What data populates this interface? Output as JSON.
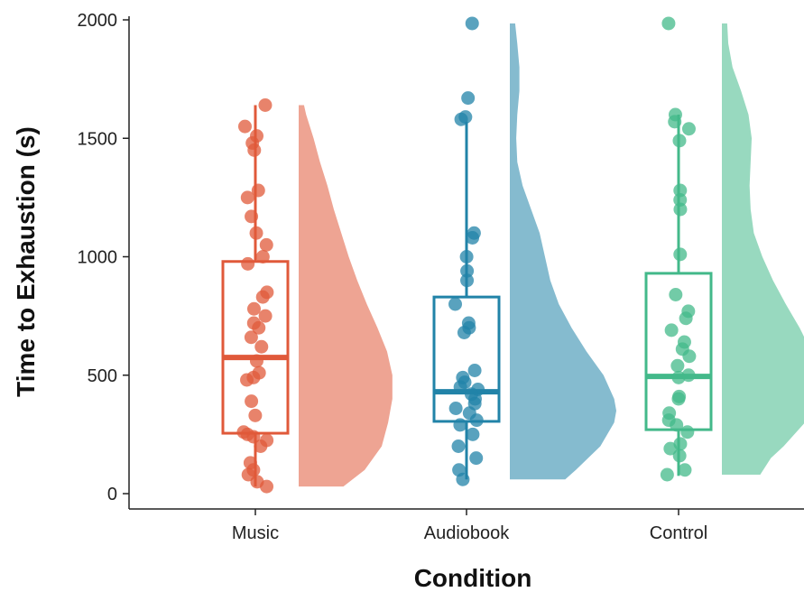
{
  "chart_data": {
    "type": "raincloud",
    "title": "",
    "xlabel": "Condition",
    "ylabel": "Time to Exhaustion (s)",
    "ylim": [
      0,
      2000
    ],
    "yticks": [
      0,
      500,
      1000,
      1500,
      2000
    ],
    "categories": [
      "Music",
      "Audiobook",
      "Control"
    ],
    "grid": false,
    "legend": "none",
    "colors": {
      "Music": "#E0593A",
      "Audiobook": "#2183A8",
      "Control": "#43B98A"
    },
    "series": [
      {
        "group": "Music",
        "box": {
          "q1": 255,
          "median": 575,
          "q3": 980,
          "whisker_low": 30,
          "whisker_high": 1640
        },
        "points": [
          1640,
          1550,
          1510,
          1480,
          1450,
          1280,
          1250,
          1170,
          1100,
          1050,
          1000,
          970,
          850,
          830,
          780,
          750,
          720,
          700,
          660,
          620,
          560,
          510,
          490,
          480,
          390,
          330,
          260,
          250,
          240,
          225,
          200,
          130,
          100,
          80,
          50,
          30
        ],
        "density": [
          [
            30,
            0.42
          ],
          [
            100,
            0.62
          ],
          [
            200,
            0.78
          ],
          [
            300,
            0.84
          ],
          [
            400,
            0.88
          ],
          [
            500,
            0.88
          ],
          [
            600,
            0.83
          ],
          [
            700,
            0.74
          ],
          [
            800,
            0.64
          ],
          [
            900,
            0.55
          ],
          [
            1000,
            0.47
          ],
          [
            1100,
            0.4
          ],
          [
            1200,
            0.33
          ],
          [
            1300,
            0.27
          ],
          [
            1400,
            0.2
          ],
          [
            1500,
            0.14
          ],
          [
            1600,
            0.07
          ],
          [
            1640,
            0.05
          ]
        ]
      },
      {
        "group": "Audiobook",
        "box": {
          "q1": 305,
          "median": 430,
          "q3": 830,
          "whisker_low": 60,
          "whisker_high": 1570
        },
        "points": [
          1985,
          1670,
          1590,
          1580,
          1100,
          1080,
          1000,
          940,
          900,
          800,
          720,
          700,
          680,
          520,
          490,
          470,
          450,
          440,
          420,
          400,
          380,
          360,
          340,
          310,
          290,
          250,
          200,
          150,
          100,
          60
        ],
        "density": [
          [
            60,
            0.52
          ],
          [
            100,
            0.62
          ],
          [
            200,
            0.85
          ],
          [
            300,
            0.98
          ],
          [
            350,
            1.0
          ],
          [
            400,
            0.98
          ],
          [
            500,
            0.88
          ],
          [
            600,
            0.72
          ],
          [
            700,
            0.58
          ],
          [
            800,
            0.46
          ],
          [
            900,
            0.38
          ],
          [
            1000,
            0.33
          ],
          [
            1100,
            0.28
          ],
          [
            1200,
            0.2
          ],
          [
            1300,
            0.12
          ],
          [
            1400,
            0.07
          ],
          [
            1500,
            0.06
          ],
          [
            1600,
            0.07
          ],
          [
            1700,
            0.09
          ],
          [
            1800,
            0.09
          ],
          [
            1900,
            0.07
          ],
          [
            1985,
            0.05
          ]
        ]
      },
      {
        "group": "Control",
        "box": {
          "q1": 270,
          "median": 495,
          "q3": 930,
          "whisker_low": 75,
          "whisker_high": 1600
        },
        "points": [
          1985,
          1600,
          1570,
          1540,
          1490,
          1280,
          1240,
          1200,
          1010,
          840,
          770,
          740,
          690,
          640,
          610,
          580,
          540,
          500,
          490,
          410,
          400,
          340,
          310,
          290,
          260,
          210,
          190,
          160,
          100,
          80
        ],
        "density": [
          [
            80,
            0.36
          ],
          [
            150,
            0.46
          ],
          [
            200,
            0.58
          ],
          [
            300,
            0.78
          ],
          [
            400,
            0.88
          ],
          [
            450,
            0.92
          ],
          [
            500,
            0.9
          ],
          [
            600,
            0.84
          ],
          [
            700,
            0.73
          ],
          [
            800,
            0.6
          ],
          [
            900,
            0.48
          ],
          [
            1000,
            0.38
          ],
          [
            1100,
            0.3
          ],
          [
            1200,
            0.27
          ],
          [
            1300,
            0.26
          ],
          [
            1400,
            0.27
          ],
          [
            1500,
            0.28
          ],
          [
            1600,
            0.25
          ],
          [
            1700,
            0.18
          ],
          [
            1800,
            0.1
          ],
          [
            1900,
            0.06
          ],
          [
            1985,
            0.05
          ]
        ]
      }
    ]
  }
}
